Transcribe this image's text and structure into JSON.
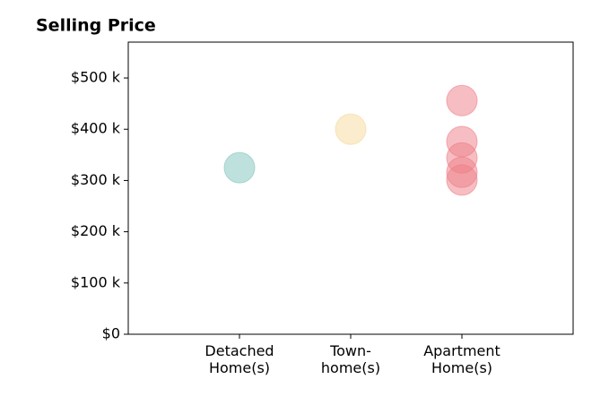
{
  "chart_data": {
    "type": "strip",
    "title": "Selling Price",
    "categories": [
      "Detached\nHome(s)",
      "Town-\nhome(s)",
      "Apartment\nHome(s)"
    ],
    "values": [
      [
        325000
      ],
      [
        400000
      ],
      [
        456000,
        376000,
        344000,
        316000,
        301000
      ]
    ],
    "colors": [
      "#7fc4bd",
      "#f5d99a",
      "#ee7d87"
    ],
    "ylim": [
      0,
      570000
    ],
    "yticks": [
      {
        "value": 0,
        "label": "$0"
      },
      {
        "value": 100000,
        "label": "$100 k"
      },
      {
        "value": 200000,
        "label": "$200 k"
      },
      {
        "value": 300000,
        "label": "$300 k"
      },
      {
        "value": 400000,
        "label": "$400 k"
      },
      {
        "value": 500000,
        "label": "$500 k"
      }
    ]
  }
}
